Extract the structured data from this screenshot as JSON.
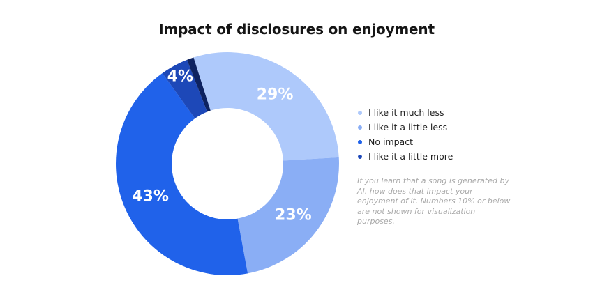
{
  "chart_data": {
    "type": "pie",
    "title": "Impact of disclosures on enjoyment",
    "categories": [
      "I like it much less",
      "I like it a little less",
      "No impact",
      "I like it a little more"
    ],
    "values": [
      29,
      23,
      43,
      4
    ],
    "display_labels": [
      "29%",
      "23%",
      "43%",
      "4%"
    ],
    "remainder_value": 1,
    "colors": [
      "#aec9fb",
      "#8aaef5",
      "#2062ea",
      "#1d48b8",
      "#0d2260"
    ],
    "donut": true,
    "legend_position": "right",
    "note": "If you learn that a song is generated by AI, how does that impact your enjoyment of it. Numbers 10% or below are not shown for visualization purposes."
  }
}
